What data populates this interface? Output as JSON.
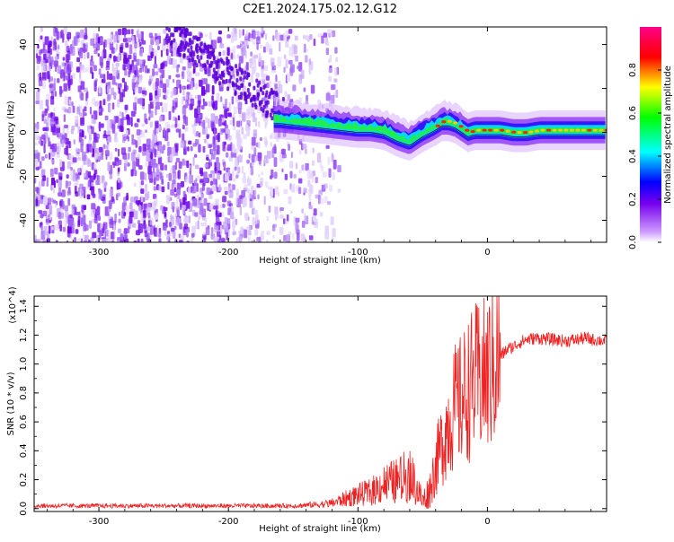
{
  "title": "C2E1.2024.175.02.12.G12",
  "chart_data": [
    {
      "type": "heatmap",
      "xlabel": "Height of straight line (km)",
      "ylabel": "Frequency (Hz)",
      "xlim": [
        -350,
        92
      ],
      "ylim": [
        -50,
        48
      ],
      "x_ticks": [
        {
          "value": -300,
          "label": "-300"
        },
        {
          "value": -200,
          "label": "-200"
        },
        {
          "value": -100,
          "label": "-100"
        },
        {
          "value": 0,
          "label": "0"
        }
      ],
      "y_ticks": [
        {
          "value": 40,
          "label": "40"
        },
        {
          "value": 20,
          "label": "20"
        },
        {
          "value": 0,
          "label": "0"
        },
        {
          "value": -20,
          "label": "-20"
        },
        {
          "value": -40,
          "label": "-40"
        }
      ],
      "ridge": {
        "x": [
          -160,
          -145,
          -130,
          -115,
          -100,
          -90,
          -80,
          -70,
          -60,
          -50,
          -40,
          -35,
          -30,
          -25,
          -20,
          -15,
          -10,
          0,
          10,
          20,
          30,
          40,
          50,
          60,
          70,
          80,
          92
        ],
        "y": [
          6,
          5,
          4,
          3,
          2,
          2,
          1,
          -2,
          -4,
          0,
          3,
          5,
          5,
          4,
          2,
          0,
          1,
          1,
          1,
          0,
          0,
          1,
          1,
          1,
          1,
          1,
          1
        ]
      },
      "colorbar": {
        "label": "Normalized spectral amplitude",
        "min": 0.0,
        "max": 1.0,
        "ticks": [
          {
            "value": 0.0,
            "label": "0.0"
          },
          {
            "value": 0.2,
            "label": "0.2"
          },
          {
            "value": 0.4,
            "label": "0.4"
          },
          {
            "value": 0.6,
            "label": "0.6"
          },
          {
            "value": 0.8,
            "label": "0.8"
          }
        ],
        "colors": [
          "#ffffff",
          "#cc99ff",
          "#7700ee",
          "#0000ff",
          "#00ffff",
          "#00ff00",
          "#ffff00",
          "#ff0000",
          "#ff0088"
        ]
      }
    },
    {
      "type": "line",
      "xlabel": "Height of straight line (km)",
      "ylabel": "SNR (10 * v/v)",
      "scale_label": "(x10^4)",
      "xlim": [
        -350,
        92
      ],
      "ylim": [
        -0.02,
        1.47
      ],
      "x_ticks": [
        {
          "value": -300,
          "label": "-300"
        },
        {
          "value": -200,
          "label": "-200"
        },
        {
          "value": -100,
          "label": "-100"
        },
        {
          "value": 0,
          "label": "0"
        }
      ],
      "y_ticks": [
        {
          "value": 0.0,
          "label": "0.0"
        },
        {
          "value": 0.2,
          "label": "0.2"
        },
        {
          "value": 0.4,
          "label": "0.4"
        },
        {
          "value": 0.6,
          "label": "0.6"
        },
        {
          "value": 0.8,
          "label": "0.8"
        },
        {
          "value": 1.0,
          "label": "1.0"
        },
        {
          "value": 1.2,
          "label": "1.2"
        },
        {
          "value": 1.4,
          "label": "1.4"
        }
      ],
      "series": [
        {
          "color": "#ee2222",
          "x": [
            -350,
            -300,
            -250,
            -200,
            -150,
            -130,
            -120,
            -110,
            -100,
            -90,
            -80,
            -70,
            -60,
            -55,
            -50,
            -45,
            -40,
            -35,
            -30,
            -25,
            -20,
            -15,
            -10,
            -5,
            0,
            5,
            10,
            15,
            20,
            25,
            30,
            40,
            50,
            60,
            70,
            75,
            80,
            92
          ],
          "y": [
            0.02,
            0.02,
            0.02,
            0.02,
            0.02,
            0.03,
            0.04,
            0.07,
            0.1,
            0.12,
            0.18,
            0.2,
            0.25,
            0.15,
            0.05,
            0.12,
            0.3,
            0.45,
            0.6,
            0.7,
            0.75,
            0.82,
            0.88,
            0.9,
            0.92,
            1.0,
            1.05,
            1.1,
            1.12,
            1.15,
            1.17,
            1.18,
            1.17,
            1.16,
            1.17,
            1.18,
            1.17,
            1.16
          ]
        }
      ]
    }
  ]
}
